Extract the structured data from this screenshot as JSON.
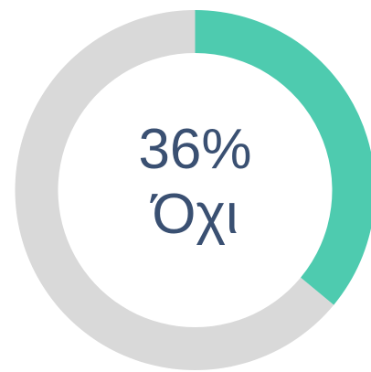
{
  "chart_data": {
    "type": "pie",
    "style": "donut",
    "slices": [
      {
        "value": 36,
        "color": "#4ecbaf"
      },
      {
        "value": 64,
        "color": "#d9d9d9"
      }
    ],
    "center": {
      "value_text": "36%",
      "label": "Όχι"
    }
  }
}
